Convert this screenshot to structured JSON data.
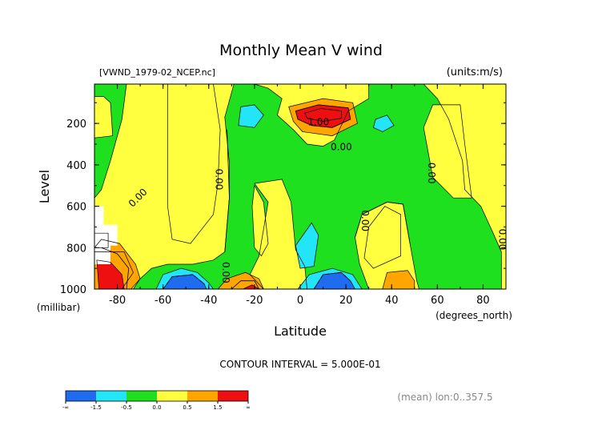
{
  "chart_data": {
    "type": "contour",
    "title": "Monthly Mean V wind",
    "file_label": "[VWND_1979-02_NCEP.nc]",
    "units_label": "(units:m/s)",
    "xlabel": "Latitude",
    "x_unit_label": "(degrees_north)",
    "ylabel": "Level",
    "y_unit_label": "(millibar)",
    "xlim": [
      -90,
      90
    ],
    "ylim": [
      1000,
      10
    ],
    "x_ticks": [
      -80,
      -60,
      -40,
      -20,
      0,
      20,
      40,
      60,
      80
    ],
    "y_ticks": [
      200,
      400,
      600,
      800,
      1000
    ],
    "x_tick_labels": [
      "-80",
      "-60",
      "-40",
      "-20",
      "0",
      "20",
      "40",
      "60",
      "80"
    ],
    "y_tick_labels": [
      "200",
      "400",
      "600",
      "800",
      "1000"
    ],
    "contour_interval_label": "CONTOUR INTERVAL = 5.000E-01",
    "contour_labels": [
      {
        "text": "1.00",
        "lat": 8,
        "lev": 210
      },
      {
        "text": "0.00",
        "lat": 18,
        "lev": 330
      },
      {
        "text": "0.00",
        "lat": -70,
        "lev": 570
      },
      {
        "text": "0.00",
        "lat": -37,
        "lev": 470
      },
      {
        "text": "0.00",
        "lat": -34,
        "lev": 920
      },
      {
        "text": "0.00",
        "lat": 27,
        "lev": 670
      },
      {
        "text": "0.00",
        "lat": 56,
        "lev": 440
      },
      {
        "text": "0.00",
        "lat": 87,
        "lev": 760
      }
    ],
    "colorbar": {
      "labels": [
        "-∞",
        "-1.5",
        "-0.5",
        "0.0",
        "0.5",
        "1.5",
        "∞"
      ],
      "colors": [
        "#1f6cf0",
        "#22e6f8",
        "#1ee01e",
        "#ffff40",
        "#ffa500",
        "#ee1010"
      ]
    },
    "footer_note": "(mean) lon:0..357.5",
    "colors": {
      "dark_blue": "#1f6cf0",
      "light_blue": "#22e6f8",
      "green": "#1ee01e",
      "yellow": "#ffff40",
      "orange": "#ffa500",
      "red": "#ee1010",
      "missing": "#ffffff"
    },
    "regions": [
      {
        "color": "yellow",
        "pts": [
          [
            -90,
            10
          ],
          [
            90,
            10
          ],
          [
            90,
            1000
          ],
          [
            -90,
            1000
          ]
        ]
      },
      {
        "color": "green",
        "pts": [
          [
            -90,
            10
          ],
          [
            -76,
            10
          ],
          [
            -78,
            180
          ],
          [
            -83,
            380
          ],
          [
            -87,
            520
          ],
          [
            -90,
            560
          ]
        ]
      },
      {
        "color": "green",
        "pts": [
          [
            -68,
            10
          ],
          [
            -29,
            10
          ],
          [
            -33,
            170
          ],
          [
            -31,
            390
          ],
          [
            -31,
            560
          ],
          [
            -33,
            820
          ],
          [
            -38,
            860
          ],
          [
            -47,
            880
          ],
          [
            -58,
            880
          ],
          [
            -65,
            900
          ],
          [
            -70,
            950
          ],
          [
            -73,
            1000
          ],
          [
            -16,
            1000
          ],
          [
            -22,
            930
          ],
          [
            -18,
            840
          ],
          [
            -14,
            580
          ],
          [
            -20,
            490
          ],
          [
            -8,
            470
          ],
          [
            -4,
            580
          ],
          [
            -2,
            810
          ],
          [
            2,
            890
          ],
          [
            3,
            1000
          ],
          [
            30,
            1000
          ],
          [
            26,
            880
          ],
          [
            24,
            750
          ],
          [
            27,
            640
          ],
          [
            38,
            580
          ],
          [
            45,
            590
          ],
          [
            48,
            780
          ],
          [
            51,
            960
          ],
          [
            52,
            1000
          ],
          [
            88,
            1000
          ],
          [
            88,
            820
          ],
          [
            84,
            720
          ],
          [
            79,
            600
          ],
          [
            72,
            520
          ],
          [
            71,
            380
          ],
          [
            65,
            180
          ],
          [
            60,
            80
          ],
          [
            54,
            10
          ],
          [
            30,
            10
          ],
          [
            30,
            80
          ],
          [
            21,
            140
          ],
          [
            15,
            280
          ],
          [
            10,
            310
          ],
          [
            3,
            300
          ],
          [
            -3,
            230
          ],
          [
            -10,
            160
          ],
          [
            -8,
            80
          ],
          [
            -14,
            30
          ],
          [
            -20,
            10
          ]
        ]
      },
      {
        "color": "green",
        "pts": [
          [
            -90,
            730
          ],
          [
            -84,
            730
          ],
          [
            -84,
            800
          ],
          [
            -90,
            800
          ]
        ]
      },
      {
        "color": "yellow",
        "pts": [
          [
            -58,
            10
          ],
          [
            -38,
            10
          ],
          [
            -35,
            230
          ],
          [
            -36,
            490
          ],
          [
            -38,
            640
          ],
          [
            -48,
            780
          ],
          [
            -56,
            760
          ],
          [
            -58,
            600
          ],
          [
            -58,
            300
          ]
        ]
      },
      {
        "color": "yellow",
        "pts": [
          [
            -20,
            500
          ],
          [
            -16,
            580
          ],
          [
            -14,
            780
          ],
          [
            -17,
            840
          ],
          [
            -20,
            800
          ],
          [
            -21,
            600
          ]
        ]
      },
      {
        "color": "yellow",
        "pts": [
          [
            58,
            110
          ],
          [
            70,
            110
          ],
          [
            72,
            300
          ],
          [
            75,
            560
          ],
          [
            67,
            560
          ],
          [
            58,
            460
          ],
          [
            54,
            220
          ]
        ]
      },
      {
        "color": "yellow",
        "pts": [
          [
            -86,
            70
          ],
          [
            -83,
            100
          ],
          [
            -82,
            260
          ],
          [
            -90,
            270
          ],
          [
            -90,
            70
          ]
        ]
      },
      {
        "color": "yellow",
        "pts": [
          [
            30,
            700
          ],
          [
            37,
            600
          ],
          [
            44,
            640
          ],
          [
            44,
            840
          ],
          [
            32,
            900
          ],
          [
            28,
            850
          ]
        ]
      },
      {
        "color": "yellow",
        "pts": [
          [
            -90,
            820
          ],
          [
            -77,
            820
          ],
          [
            -73,
            920
          ],
          [
            -78,
            1000
          ],
          [
            -90,
            1000
          ]
        ]
      },
      {
        "color": "light_blue",
        "pts": [
          [
            -26,
            120
          ],
          [
            -20,
            110
          ],
          [
            -16,
            160
          ],
          [
            -20,
            220
          ],
          [
            -27,
            210
          ]
        ]
      },
      {
        "color": "light_blue",
        "pts": [
          [
            33,
            180
          ],
          [
            38,
            160
          ],
          [
            41,
            210
          ],
          [
            36,
            240
          ],
          [
            32,
            220
          ]
        ]
      },
      {
        "color": "light_blue",
        "pts": [
          [
            -2,
            790
          ],
          [
            5,
            680
          ],
          [
            8,
            740
          ],
          [
            6,
            890
          ],
          [
            0,
            900
          ]
        ]
      },
      {
        "color": "light_blue",
        "pts": [
          [
            -63,
            1000
          ],
          [
            -60,
            930
          ],
          [
            -52,
            900
          ],
          [
            -45,
            920
          ],
          [
            -40,
            970
          ],
          [
            -38,
            1000
          ]
        ]
      },
      {
        "color": "light_blue",
        "pts": [
          [
            -1,
            1000
          ],
          [
            4,
            930
          ],
          [
            14,
            900
          ],
          [
            23,
            930
          ],
          [
            27,
            1000
          ]
        ]
      },
      {
        "color": "dark_blue",
        "pts": [
          [
            -60,
            1000
          ],
          [
            -56,
            940
          ],
          [
            -47,
            930
          ],
          [
            -42,
            975
          ],
          [
            -41,
            1000
          ]
        ]
      },
      {
        "color": "dark_blue",
        "pts": [
          [
            6,
            1000
          ],
          [
            10,
            930
          ],
          [
            18,
            920
          ],
          [
            22,
            960
          ],
          [
            24,
            1000
          ]
        ]
      },
      {
        "color": "orange",
        "pts": [
          [
            -5,
            120
          ],
          [
            10,
            80
          ],
          [
            23,
            100
          ],
          [
            25,
            200
          ],
          [
            14,
            260
          ],
          [
            1,
            240
          ],
          [
            -3,
            190
          ]
        ]
      },
      {
        "color": "red",
        "pts": [
          [
            -2,
            140
          ],
          [
            8,
            110
          ],
          [
            21,
            125
          ],
          [
            22,
            180
          ],
          [
            14,
            220
          ],
          [
            5,
            210
          ],
          [
            -1,
            180
          ]
        ]
      },
      {
        "color": "orange",
        "pts": [
          [
            -87,
            760
          ],
          [
            -79,
            780
          ],
          [
            -72,
            880
          ],
          [
            -70,
            950
          ],
          [
            -74,
            1000
          ],
          [
            -90,
            1000
          ],
          [
            -90,
            800
          ]
        ]
      },
      {
        "color": "red",
        "pts": [
          [
            -89,
            860
          ],
          [
            -83,
            870
          ],
          [
            -78,
            930
          ],
          [
            -77,
            1000
          ],
          [
            -88,
            1000
          ]
        ]
      },
      {
        "color": "orange",
        "pts": [
          [
            -36,
            1000
          ],
          [
            -32,
            950
          ],
          [
            -24,
            920
          ],
          [
            -18,
            950
          ],
          [
            -16,
            1000
          ]
        ]
      },
      {
        "color": "red",
        "pts": [
          [
            -25,
            1000
          ],
          [
            -21,
            980
          ],
          [
            -18,
            1000
          ]
        ]
      },
      {
        "color": "orange",
        "pts": [
          [
            36,
            1000
          ],
          [
            38,
            920
          ],
          [
            47,
            910
          ],
          [
            50,
            960
          ],
          [
            50,
            1000
          ]
        ]
      },
      {
        "color": "missing",
        "pts": [
          [
            -90,
            600
          ],
          [
            -86,
            600
          ],
          [
            -86,
            690
          ],
          [
            -80,
            690
          ],
          [
            -80,
            790
          ],
          [
            -83,
            790
          ],
          [
            -83,
            880
          ],
          [
            -90,
            880
          ]
        ]
      }
    ],
    "contours": [
      {
        "style": "solid",
        "pts": [
          [
            -2,
            140
          ],
          [
            8,
            110
          ],
          [
            21,
            125
          ],
          [
            22,
            180
          ],
          [
            14,
            220
          ],
          [
            5,
            210
          ],
          [
            -1,
            180
          ],
          [
            -2,
            140
          ]
        ]
      },
      {
        "style": "solid",
        "pts": [
          [
            2,
            150
          ],
          [
            9,
            128
          ],
          [
            18,
            140
          ],
          [
            18,
            175
          ],
          [
            10,
            190
          ],
          [
            3,
            175
          ],
          [
            2,
            150
          ]
        ]
      },
      {
        "style": "solid",
        "pts": [
          [
            -32,
            230
          ],
          [
            -31,
            560
          ],
          [
            -33,
            820
          ]
        ]
      },
      {
        "style": "solid",
        "pts": [
          [
            24,
            750
          ],
          [
            27,
            640
          ],
          [
            38,
            580
          ],
          [
            45,
            590
          ],
          [
            48,
            780
          ]
        ]
      },
      {
        "style": "dashed",
        "pts": [
          [
            -60,
            1000
          ],
          [
            -56,
            940
          ],
          [
            -47,
            930
          ],
          [
            -42,
            975
          ]
        ]
      },
      {
        "style": "dashed",
        "pts": [
          [
            6,
            1000
          ],
          [
            10,
            930
          ],
          [
            18,
            920
          ],
          [
            22,
            960
          ]
        ]
      },
      {
        "style": "solid",
        "pts": [
          [
            -87,
            800
          ],
          [
            -80,
            830
          ],
          [
            -75,
            900
          ],
          [
            -76,
            1000
          ]
        ]
      },
      {
        "style": "solid",
        "pts": [
          [
            -30,
            1000
          ],
          [
            -26,
            960
          ],
          [
            -20,
            960
          ],
          [
            -18,
            1000
          ]
        ]
      }
    ]
  }
}
